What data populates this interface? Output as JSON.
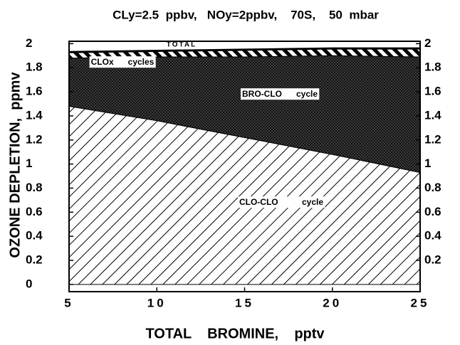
{
  "chart_data": {
    "type": "stacked_area",
    "title": "CLy=2.5  ppbv,   NOy=2ppbv,    70S,    50  mbar",
    "x_label": "TOTAL    BROMINE,    pptv",
    "y_label": "OZONE DEPLETION,  ppmv",
    "top_label": "TOTAL",
    "x": [
      5,
      10,
      15,
      20,
      25
    ],
    "series": [
      {
        "name": "CLO-CLO          cycle",
        "color": "#000000",
        "values": [
          1.48,
          1.36,
          1.22,
          1.08,
          0.93
        ]
      },
      {
        "name": "BRO-CLO      cycle",
        "color": "#000000",
        "values": [
          0.4,
          0.53,
          0.67,
          0.82,
          0.96
        ]
      },
      {
        "name": "CLOx      cycles",
        "color": "#000000",
        "values": [
          0.05,
          0.05,
          0.06,
          0.06,
          0.07
        ]
      }
    ],
    "xlim": [
      5,
      25
    ],
    "xticks": [
      5,
      10,
      15,
      20,
      25
    ],
    "ylim": [
      -0.06,
      2.02
    ],
    "yticks": [
      0,
      0.2,
      0.4,
      0.6,
      0.8,
      1,
      1.2,
      1.4,
      1.6,
      1.8,
      2
    ],
    "y2lim": [
      -0.06,
      2.02
    ],
    "y2ticks": [
      0.2,
      0.4,
      0.6,
      0.8,
      1,
      1.2,
      1.4,
      1.6,
      1.8,
      2
    ]
  }
}
